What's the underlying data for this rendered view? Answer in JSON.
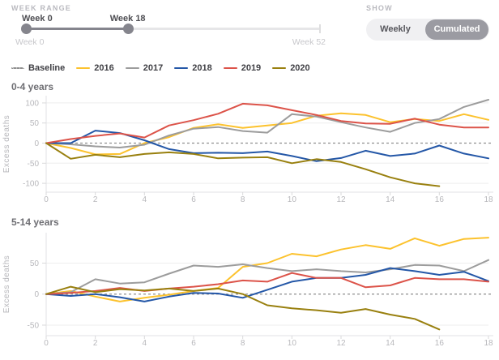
{
  "controls": {
    "week_range": {
      "label": "WEEK RANGE",
      "start_label": "Week 0",
      "end_label": "Week 18",
      "min_label": "Week 0",
      "max_label": "Week 52",
      "min": 0,
      "max": 52,
      "start": 0,
      "end": 18
    },
    "show": {
      "label": "SHOW",
      "options": [
        "Weekly",
        "Cumulated"
      ],
      "selected": "Cumulated"
    }
  },
  "colors": {
    "baseline": "#8f8f8f",
    "y2016": "#fcc22d",
    "y2017": "#9c9c9c",
    "y2018": "#2457a7",
    "y2019": "#dc5349",
    "y2020": "#99800f",
    "slider_active": "#85858d",
    "toggle_selected": "#9b9ba2",
    "axis": "#e2e2e4",
    "grid": "#ededee",
    "tick_text": "#b7b7bb"
  },
  "legend": {
    "items": [
      {
        "label": "Baseline",
        "style": "dashed",
        "color": "#8f8f8f"
      },
      {
        "label": "2016",
        "style": "solid",
        "color": "#fcc22d"
      },
      {
        "label": "2017",
        "style": "solid",
        "color": "#9c9c9c"
      },
      {
        "label": "2018",
        "style": "solid",
        "color": "#2457a7"
      },
      {
        "label": "2019",
        "style": "solid",
        "color": "#dc5349"
      },
      {
        "label": "2020",
        "style": "solid",
        "color": "#99800f"
      }
    ]
  },
  "chart_data": [
    {
      "type": "line",
      "title": "0-4 years",
      "ylabel": "Excess deaths",
      "xlabel": "",
      "x_max": 18,
      "xticks": [
        0,
        2,
        4,
        6,
        8,
        10,
        12,
        14,
        16,
        18
      ],
      "yticks": [
        -100,
        -50,
        0,
        50,
        100
      ],
      "ylim": [
        -122,
        118
      ],
      "baseline": 0,
      "grid": true,
      "legend_position": "top-left",
      "series": [
        {
          "name": "2016",
          "color": "#fcc22d",
          "values": [
            0,
            -12,
            -28,
            -27,
            0,
            15,
            38,
            47,
            38,
            44,
            50,
            68,
            74,
            70,
            52,
            60,
            55,
            72,
            58
          ]
        },
        {
          "name": "2017",
          "color": "#9c9c9c",
          "values": [
            0,
            -3,
            -8,
            -11,
            -4,
            19,
            36,
            40,
            30,
            26,
            72,
            66,
            52,
            39,
            28,
            50,
            60,
            90,
            108
          ]
        },
        {
          "name": "2018",
          "color": "#2457a7",
          "values": [
            0,
            0,
            31,
            25,
            7,
            -15,
            -25,
            -24,
            -25,
            -21,
            -32,
            -45,
            -37,
            -19,
            -32,
            -26,
            -6,
            -26,
            -38
          ]
        },
        {
          "name": "2019",
          "color": "#dc5349",
          "values": [
            0,
            10,
            18,
            24,
            14,
            44,
            57,
            73,
            98,
            94,
            82,
            70,
            55,
            49,
            48,
            61,
            46,
            39,
            39
          ]
        },
        {
          "name": "2020",
          "color": "#99800f",
          "values": [
            0,
            -39,
            -29,
            -35,
            -27,
            -23,
            -27,
            -38,
            -36,
            -35,
            -50,
            -40,
            -47,
            -65,
            -85,
            -100,
            -107
          ]
        }
      ]
    },
    {
      "type": "line",
      "title": "5-14 years",
      "ylabel": "Excess deaths",
      "xlabel": "",
      "x_max": 18,
      "xticks": [
        0,
        2,
        4,
        6,
        8,
        10,
        12,
        14,
        16,
        18
      ],
      "yticks": [
        -50,
        0,
        50
      ],
      "ylim": [
        -67,
        99
      ],
      "baseline": 0,
      "grid": true,
      "legend_position": "top-left",
      "series": [
        {
          "name": "2016",
          "color": "#fcc22d",
          "values": [
            0,
            5,
            -4,
            -12,
            -6,
            -1,
            5,
            10,
            44,
            50,
            65,
            61,
            72,
            79,
            73,
            90,
            78,
            89,
            91
          ]
        },
        {
          "name": "2017",
          "color": "#9c9c9c",
          "values": [
            0,
            3,
            24,
            17,
            19,
            33,
            46,
            44,
            48,
            42,
            37,
            40,
            37,
            35,
            40,
            47,
            46,
            37,
            55
          ]
        },
        {
          "name": "2018",
          "color": "#2457a7",
          "values": [
            0,
            -3,
            0,
            -5,
            -12,
            -4,
            2,
            1,
            -6,
            7,
            20,
            26,
            26,
            31,
            42,
            37,
            31,
            36,
            21
          ]
        },
        {
          "name": "2019",
          "color": "#dc5349",
          "values": [
            0,
            2,
            5,
            10,
            5,
            9,
            12,
            16,
            22,
            20,
            34,
            26,
            26,
            11,
            14,
            26,
            24,
            24,
            20
          ]
        },
        {
          "name": "2020",
          "color": "#99800f",
          "values": [
            0,
            12,
            3,
            8,
            6,
            9,
            5,
            9,
            0,
            -18,
            -23,
            -26,
            -30,
            -24,
            -33,
            -40,
            -57
          ]
        }
      ]
    }
  ]
}
